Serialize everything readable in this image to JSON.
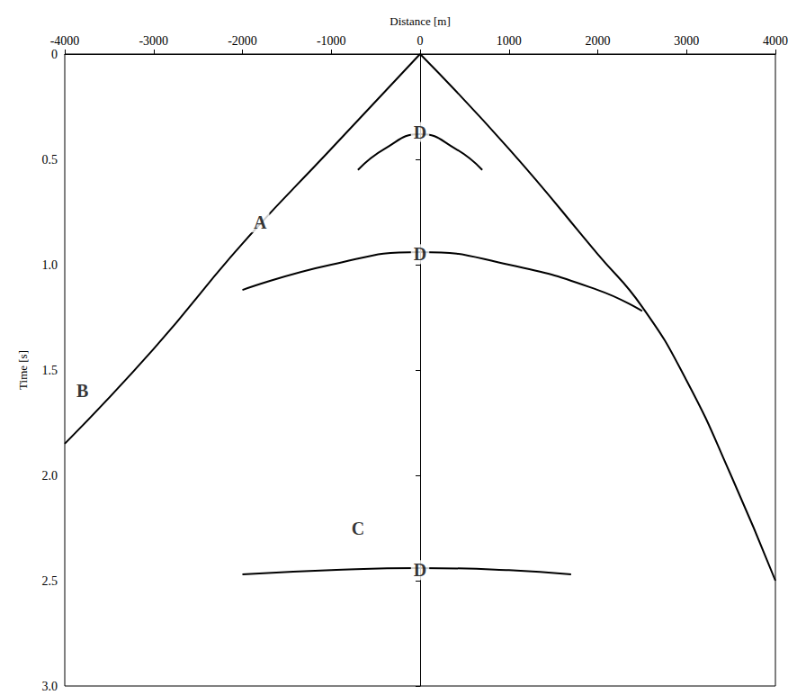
{
  "chart_data": {
    "type": "line",
    "x_label": "Distance [m]",
    "y_label": "Time [s]",
    "xlim": [
      -4000,
      4000
    ],
    "xticks": [
      -4000,
      -3000,
      -2000,
      -1000,
      0,
      1000,
      2000,
      3000,
      4000
    ],
    "ylim": [
      0,
      3
    ],
    "yticks": [
      0,
      0.5,
      {
        "value": 1,
        "label": "1.0"
      },
      1.5,
      {
        "value": 2,
        "label": "2.0"
      },
      2.5,
      {
        "value": 3,
        "label": "3.0"
      }
    ],
    "grid": false,
    "series": [
      {
        "color": "#000000",
        "x": [
          -4000,
          -3000,
          -2000,
          -1000,
          0
        ],
        "values": [
          1.85,
          1.4,
          0.9,
          0.45,
          0
        ]
      },
      {
        "color": "#000000",
        "x": [
          0,
          1000,
          2000,
          2500,
          3000,
          3500,
          4000
        ],
        "values": [
          0,
          0.45,
          0.95,
          1.2,
          1.55,
          2.0,
          2.5
        ]
      },
      {
        "color": "#000000",
        "x": [
          -700,
          -400,
          0,
          400,
          700
        ],
        "values": [
          0.55,
          0.45,
          0.38,
          0.45,
          0.55
        ]
      },
      {
        "color": "#000000",
        "x": [
          -2000,
          -1000,
          0,
          1000,
          2000,
          2500
        ],
        "values": [
          1.12,
          1.0,
          0.94,
          1.0,
          1.12,
          1.22
        ]
      },
      {
        "color": "#000000",
        "x": [
          -2000,
          -1000,
          0,
          1000,
          1700
        ],
        "values": [
          2.47,
          2.45,
          2.44,
          2.45,
          2.47
        ]
      }
    ],
    "annotations": [
      {
        "text": "A",
        "x": -1800,
        "y": 0.8
      },
      {
        "text": "B",
        "x": -3800,
        "y": 1.6
      },
      {
        "text": "C",
        "x": -700,
        "y": 2.25
      },
      {
        "text": "D",
        "x": 0,
        "y": 0.37
      },
      {
        "text": "D",
        "x": 0,
        "y": 0.95
      },
      {
        "text": "D",
        "x": 0,
        "y": 2.45
      }
    ]
  }
}
